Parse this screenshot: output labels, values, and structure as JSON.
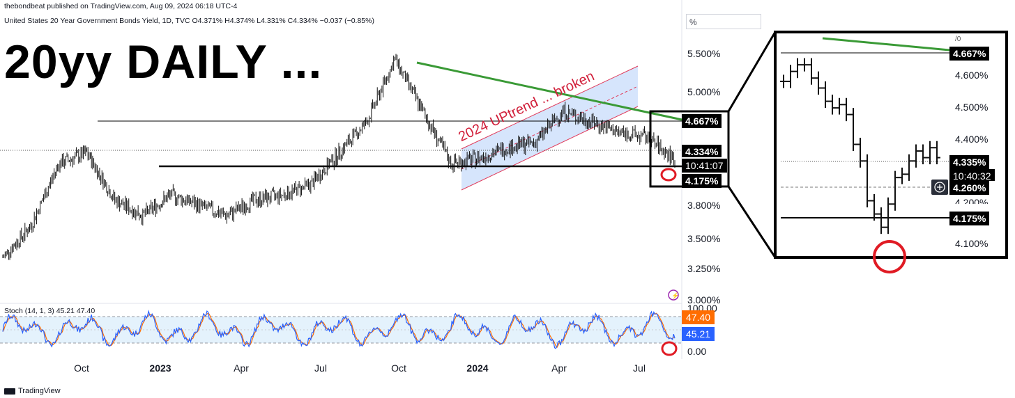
{
  "header": {
    "publisher": "thebondbeat published on TradingView.com, Aug 09, 2024 06:18 UTC-4",
    "symbol_line": "United States 20 Year Government Bonds Yield, 1D, TVC  O4.371% H4.374% L4.331% C4.334% −0.037 (−0.85%)",
    "unit_box": "%",
    "big_title": "20yy DAILY ..."
  },
  "annotations": {
    "trend_label": "2024 UPtrend ... broken"
  },
  "price_axis": {
    "ticks": [
      "5.500%",
      "5.000%",
      "4.500%",
      "3.800%",
      "3.500%",
      "3.250%",
      "3.000%"
    ],
    "tags": {
      "upper": "4.667%",
      "last": "4.334%",
      "countdown": "10:41:07",
      "lower": "4.175%"
    }
  },
  "time_axis": {
    "labels": [
      "Oct",
      "2023",
      "Apr",
      "Jul",
      "Oct",
      "2024",
      "Apr",
      "Jul"
    ],
    "bold": [
      "2023",
      "2024"
    ]
  },
  "stoch": {
    "title": "Stoch (14, 1, 3)  45.21  47.40",
    "ticks": [
      "100.00",
      "0.00"
    ],
    "k_value": "45.21",
    "d_value": "47.40",
    "colors": {
      "k": "#2962ff",
      "d": "#ff6d00"
    }
  },
  "inset": {
    "ticks": [
      "4.600%",
      "4.500%",
      "4.400%",
      "4.200%",
      "4.100%"
    ],
    "top_fragment": "/0",
    "tags": {
      "upper": "4.667%",
      "last": "4.335%",
      "countdown": "10:40:32",
      "cursor": "4.260%",
      "lower": "4.175%"
    }
  },
  "footer": {
    "brand": "TradingView"
  },
  "chart_data": {
    "type": "bar",
    "title": "United States 20 Year Government Bonds Yield, 1D, TVC",
    "ylabel": "%",
    "ylim": [
      3.0,
      5.6
    ],
    "series": [
      {
        "name": "United States 20 Year Government Bonds Yield",
        "x": [
          "2022-08",
          "2022-09",
          "2022-10",
          "2022-11",
          "2022-12",
          "2023-01",
          "2023-02",
          "2023-03",
          "2023-04",
          "2023-05",
          "2023-06",
          "2023-07",
          "2023-08",
          "2023-09",
          "2023-10",
          "2023-11",
          "2023-12",
          "2024-01",
          "2024-02",
          "2024-03",
          "2024-04",
          "2024-05",
          "2024-06",
          "2024-07",
          "2024-08"
        ],
        "values": [
          3.4,
          3.7,
          4.3,
          4.4,
          3.95,
          3.8,
          4.0,
          3.9,
          3.8,
          3.95,
          4.0,
          4.1,
          4.4,
          4.7,
          5.3,
          4.8,
          4.3,
          4.35,
          4.45,
          4.5,
          4.8,
          4.7,
          4.6,
          4.55,
          4.334
        ]
      }
    ],
    "levels": {
      "resistance": 4.667,
      "support": 4.175,
      "last": 4.334
    },
    "stochastic": {
      "k": 45.21,
      "d": 47.4,
      "upper_band": 80,
      "lower_band": 20
    }
  }
}
